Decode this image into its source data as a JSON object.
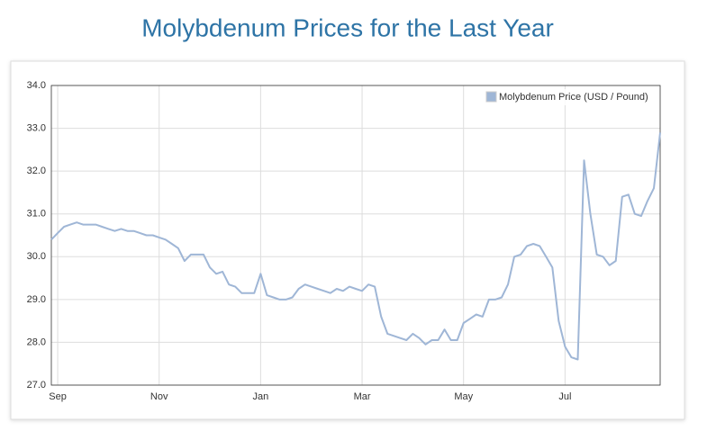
{
  "chart_data": {
    "type": "line",
    "title": "Molybdenum Prices for the Last Year",
    "categories": [
      null,
      "Sep",
      null,
      null,
      null,
      null,
      null,
      null,
      null,
      null,
      null,
      null,
      null,
      null,
      null,
      null,
      null,
      "Nov",
      null,
      null,
      null,
      null,
      null,
      null,
      null,
      null,
      null,
      null,
      null,
      null,
      null,
      null,
      null,
      "Jan",
      null,
      null,
      null,
      null,
      null,
      null,
      null,
      null,
      null,
      null,
      null,
      null,
      null,
      null,
      null,
      "Mar",
      null,
      null,
      null,
      null,
      null,
      null,
      null,
      null,
      null,
      null,
      null,
      null,
      null,
      null,
      null,
      "May",
      null,
      null,
      null,
      null,
      null,
      null,
      null,
      null,
      null,
      null,
      null,
      null,
      null,
      null,
      null,
      "Jul",
      null,
      null,
      null,
      null,
      null,
      null,
      null,
      null,
      null,
      null,
      null,
      null,
      null,
      null,
      null
    ],
    "series": [
      {
        "name": "Molybdenum Price (USD / Pound)",
        "color": "#9fb6d6",
        "values": [
          30.4,
          30.55,
          30.7,
          30.75,
          30.8,
          30.75,
          30.75,
          30.75,
          30.7,
          30.65,
          30.6,
          30.65,
          30.6,
          30.6,
          30.55,
          30.5,
          30.5,
          30.45,
          30.4,
          30.3,
          30.2,
          29.9,
          30.05,
          30.05,
          30.05,
          29.75,
          29.6,
          29.65,
          29.35,
          29.3,
          29.15,
          29.15,
          29.15,
          29.6,
          29.1,
          29.05,
          29.0,
          29.0,
          29.05,
          29.25,
          29.35,
          29.3,
          29.25,
          29.2,
          29.15,
          29.25,
          29.2,
          29.3,
          29.25,
          29.2,
          29.35,
          29.3,
          28.6,
          28.2,
          28.15,
          28.1,
          28.05,
          28.2,
          28.1,
          27.95,
          28.05,
          28.05,
          28.3,
          28.05,
          28.05,
          28.45,
          28.55,
          28.65,
          28.6,
          29.0,
          29.0,
          29.05,
          29.35,
          30.0,
          30.05,
          30.25,
          30.3,
          30.25,
          30.0,
          29.75,
          28.5,
          27.9,
          27.65,
          27.6,
          32.25,
          31.0,
          30.05,
          30.0,
          29.8,
          29.9,
          31.4,
          31.45,
          31.0,
          30.95,
          31.3,
          31.6,
          32.9
        ]
      }
    ],
    "ylim": [
      27,
      34
    ],
    "yticks": [
      {
        "value": 27,
        "label": "27.0"
      },
      {
        "value": 28,
        "label": "28.0"
      },
      {
        "value": 29,
        "label": "29.0"
      },
      {
        "value": 30,
        "label": "30.0"
      },
      {
        "value": 31,
        "label": "31.0"
      },
      {
        "value": 32,
        "label": "32.0"
      },
      {
        "value": 33,
        "label": "33.0"
      },
      {
        "value": 34,
        "label": "34.0"
      }
    ],
    "grid": true,
    "legend": "top-right"
  }
}
